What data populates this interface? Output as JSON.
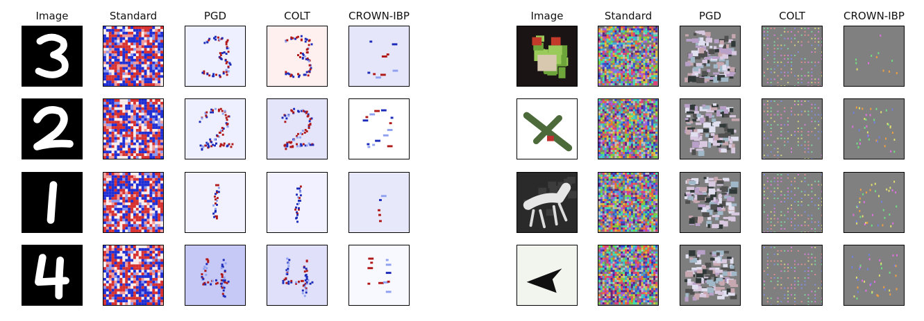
{
  "figure": {
    "mnist": {
      "headers": [
        "Image",
        "Standard",
        "PGD",
        "COLT",
        "CROWN-IBP"
      ],
      "digits": [
        "3",
        "2",
        "1",
        "4"
      ]
    },
    "cifar": {
      "headers": [
        "Image",
        "Standard",
        "PGD",
        "COLT",
        "CROWN-IBP"
      ],
      "subjects": [
        "frog",
        "airplane",
        "horse",
        "airplane"
      ]
    }
  },
  "colors": {
    "negative": "#1a2bd0",
    "positive": "#d42020",
    "neutral_pale_blue": "#eef0ff",
    "neutral_pale_red": "#fff0f0",
    "cifar_gray": "#808080"
  }
}
